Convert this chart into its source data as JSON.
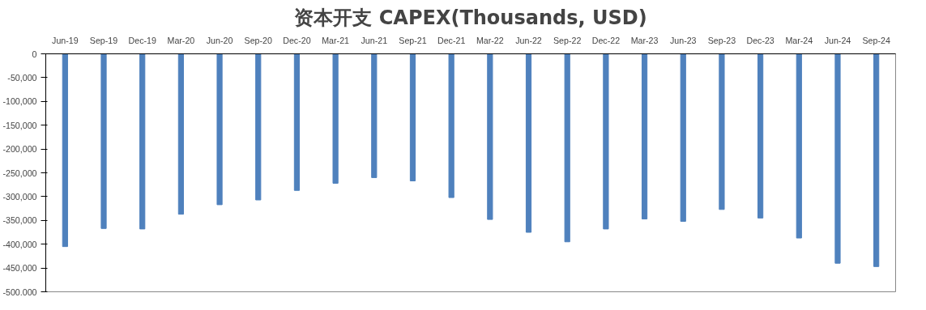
{
  "chart_data": {
    "type": "bar",
    "title": "资本开支 CAPEX(Thousands, USD)",
    "categories": [
      "Jun-19",
      "Sep-19",
      "Dec-19",
      "Mar-20",
      "Jun-20",
      "Sep-20",
      "Dec-20",
      "Mar-21",
      "Jun-21",
      "Sep-21",
      "Dec-21",
      "Mar-22",
      "Jun-22",
      "Sep-22",
      "Dec-22",
      "Mar-23",
      "Jun-23",
      "Sep-23",
      "Dec-23",
      "Mar-24",
      "Jun-24",
      "Sep-24"
    ],
    "values": [
      -405000,
      -367000,
      -368000,
      -337000,
      -317000,
      -307000,
      -287000,
      -272000,
      -260000,
      -267000,
      -302000,
      -348000,
      -375000,
      -395000,
      -368000,
      -347000,
      -352000,
      -327000,
      -345000,
      -387000,
      -440000,
      -447000
    ],
    "color": "#4f81bd",
    "ylim": [
      -500000,
      0
    ],
    "yticks": [
      {
        "value": -500000,
        "label": "-500,000"
      },
      {
        "value": -450000,
        "label": "-450,000"
      },
      {
        "value": -400000,
        "label": "-400,000"
      },
      {
        "value": -350000,
        "label": "-350,000"
      },
      {
        "value": -300000,
        "label": "-300,000"
      },
      {
        "value": -250000,
        "label": "-250,000"
      },
      {
        "value": -200000,
        "label": "-200,000"
      },
      {
        "value": -150000,
        "label": "-150,000"
      },
      {
        "value": -100000,
        "label": "-100,000"
      },
      {
        "value": -50000,
        "label": "-50,000"
      },
      {
        "value": 0,
        "label": "0"
      }
    ],
    "grid": false
  }
}
